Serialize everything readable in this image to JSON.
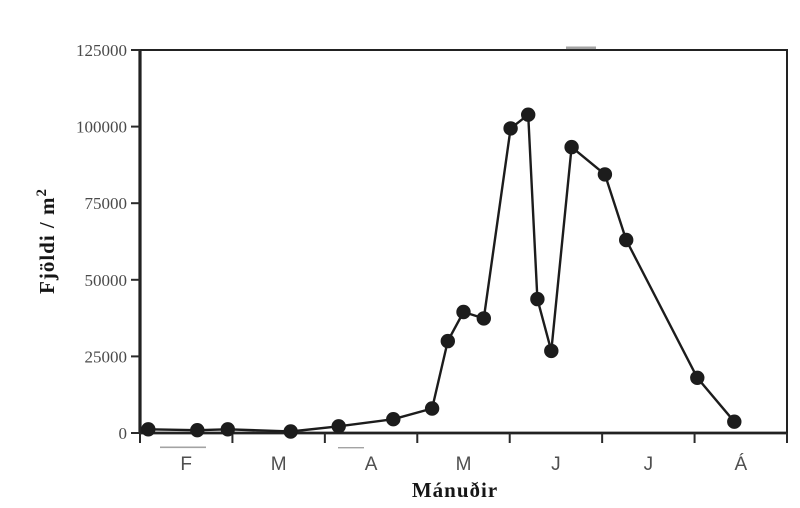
{
  "figure": {
    "background": "#ffffff",
    "ink_color": "#1c1c1c",
    "tick_label_color": "#4a4a4a",
    "axis_title_color": "#161616"
  },
  "chart_data": {
    "type": "line",
    "title": "",
    "xlabel": "Mánuðir",
    "ylabel": "Fjöldi / m²",
    "ylabel_base": "Fjöldi / m",
    "ylabel_sup": "2",
    "grid": false,
    "legend": "none",
    "x_axis": {
      "unit": "month",
      "range": [
        0,
        7
      ],
      "tick_positions": [
        0,
        1,
        2,
        3,
        4,
        5,
        6,
        7
      ],
      "category_labels": [
        "F",
        "M",
        "A",
        "M",
        "J",
        "J",
        "Á"
      ]
    },
    "y_axis": {
      "range": [
        0,
        125000
      ],
      "tick_values": [
        0,
        25000,
        50000,
        75000,
        100000,
        125000
      ],
      "tick_labels": [
        "0",
        "25000",
        "50000",
        "75000",
        "100000",
        "125000"
      ]
    },
    "series": [
      {
        "name": "Fjöldi / m²",
        "marker": "filled-circle",
        "line_style": "solid",
        "points": [
          [
            0.09,
            1200
          ],
          [
            0.62,
            900
          ],
          [
            0.95,
            1200
          ],
          [
            1.63,
            500
          ],
          [
            2.15,
            2200
          ],
          [
            2.74,
            4500
          ],
          [
            3.16,
            8000
          ],
          [
            3.33,
            30000
          ],
          [
            3.5,
            39500
          ],
          [
            3.72,
            37400
          ],
          [
            4.01,
            99400
          ],
          [
            4.2,
            103900
          ],
          [
            4.3,
            43700
          ],
          [
            4.45,
            26800
          ],
          [
            4.67,
            93300
          ],
          [
            5.03,
            84400
          ],
          [
            5.26,
            63000
          ],
          [
            6.03,
            18000
          ],
          [
            6.43,
            3700
          ]
        ]
      }
    ]
  }
}
